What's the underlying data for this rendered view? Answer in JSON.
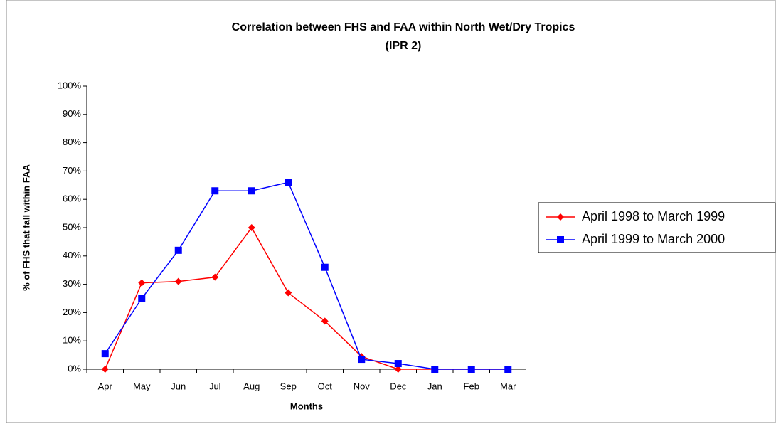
{
  "chart_data": {
    "type": "line",
    "title": [
      "Correlation between FHS and FAA within North Wet/Dry Tropics",
      "(IPR 2)"
    ],
    "xlabel": "Months",
    "ylabel": "% of FHS that fall within FAA",
    "categories": [
      "Apr",
      "May",
      "Jun",
      "Jul",
      "Aug",
      "Sep",
      "Oct",
      "Nov",
      "Dec",
      "Jan",
      "Feb",
      "Mar"
    ],
    "series": [
      {
        "name": "April 1998 to March 1999",
        "color": "#ff0000",
        "marker": "diamond",
        "values": [
          0,
          30.5,
          31,
          32.5,
          50,
          27,
          17,
          4.5,
          0,
          0,
          0,
          0
        ]
      },
      {
        "name": "April 1999 to March 2000",
        "color": "#0000ff",
        "marker": "square",
        "values": [
          5.5,
          25,
          42,
          63,
          63,
          66,
          36,
          3.5,
          2,
          0,
          0,
          0
        ]
      }
    ],
    "ylim": [
      0,
      100
    ],
    "yticks": [
      {
        "value": 0,
        "label": "0%"
      },
      {
        "value": 10,
        "label": "10%"
      },
      {
        "value": 20,
        "label": "20%"
      },
      {
        "value": 30,
        "label": "30%"
      },
      {
        "value": 40,
        "label": "40%"
      },
      {
        "value": 50,
        "label": "50%"
      },
      {
        "value": 60,
        "label": "60%"
      },
      {
        "value": 70,
        "label": "70%"
      },
      {
        "value": 80,
        "label": "80%"
      },
      {
        "value": 90,
        "label": "90%"
      },
      {
        "value": 100,
        "label": "100%"
      }
    ],
    "legend": "right"
  }
}
